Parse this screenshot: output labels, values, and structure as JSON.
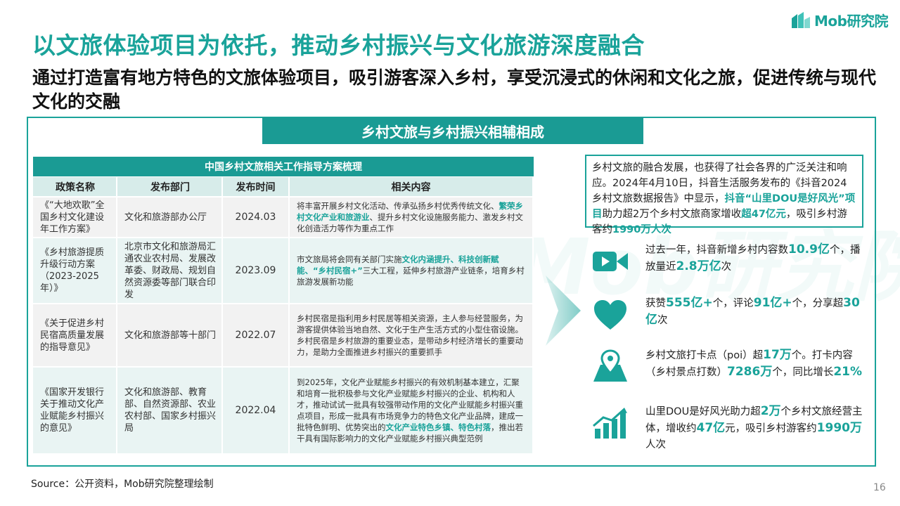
{
  "brand": {
    "logo_text": "Mob研究院",
    "accent": "#1aa39a"
  },
  "title": "以文旅体验项目为依托，推动乡村振兴与文化旅游深度融合",
  "subtitle": "通过打造富有地方特色的文旅体验项目，吸引游客深入乡村，享受沉浸式的休闲和文化之旅，促进传统与现代文化的交融",
  "banner": "乡村文旅与乡村振兴相辅相成",
  "watermark": "Mob研究院",
  "table": {
    "title": "中国乡村文旅相关工作指导方案梳理",
    "headers": [
      "政策名称",
      "发布部门",
      "发布时间",
      "相关内容"
    ],
    "rows": [
      {
        "name": "《“大地欢歌”全国乡村文化建设年工作方案》",
        "dept": "文化和旅游部办公厅",
        "date": "2024.03",
        "content_parts": [
          {
            "t": "将丰富开展乡村文化活动、传承弘扬乡村优秀传统文化、",
            "hl": false
          },
          {
            "t": "繁荣乡村文化产业和旅游业",
            "hl": true
          },
          {
            "t": "、提升乡村文化设施服务能力、激发乡村文化创造活力等作为重点工作",
            "hl": false
          }
        ]
      },
      {
        "name": "《乡村旅游提质升级行动方案（2023-2025年）》",
        "dept": "北京市文化和旅游局汇通农业农村局、发展改革委、财政局、规划自然资源委等部门联合印发",
        "date": "2023.09",
        "content_parts": [
          {
            "t": "市文旅局将会同有关部门实施",
            "hl": false
          },
          {
            "t": "文化内涵提升、科技创新赋能、“乡村民宿+”",
            "hl": true
          },
          {
            "t": "三大工程，延伸乡村旅游产业链条，培育乡村旅游发展新功能",
            "hl": false
          }
        ]
      },
      {
        "name": "《关于促进乡村民宿高质量发展的指导意见》",
        "dept": "文化和旅游部等十部门",
        "date": "2022.07",
        "content_parts": [
          {
            "t": "乡村民宿是指利用乡村民居等相关资源，主人参与经营服务，为游客提供体验当地自然、文化于生产生活方式的小型住宿设施。乡村民宿是乡村旅游的重要业态，是带动乡村经济增长的重要动力，是助力全面推进乡村振兴的重要抓手",
            "hl": false
          }
        ]
      },
      {
        "name": "《国家开发银行关于推动文化产业赋能乡村振兴的意见》",
        "dept": "文化和旅游部、教育部、自然资源部、农业农村部、国家乡村振兴局",
        "date": "2022.04",
        "content_parts": [
          {
            "t": "到2025年，文化产业赋能乡村振兴的有效机制基本建立，汇聚和培育一批积极参与文化产业赋能乡村振兴的企业、机构和人才，推动试试一批具有较强带动作用的文化产业赋能乡村振兴重点项目，形成一批具有市场竞争力的特色文化产业品牌，建成一批特色鲜明、优势突出的",
            "hl": false
          },
          {
            "t": "文化产业特色乡镇、特色村落",
            "hl": true
          },
          {
            "t": "，推出若干具有国际影响力的文化产业赋能乡村振兴典型范例",
            "hl": false
          }
        ]
      }
    ]
  },
  "callout_parts": [
    {
      "t": "乡村文旅的融合发展，也获得了社会各界的广泛关注和响应。2024年4月10日，抖音生活服务发布的《抖音2024乡村文旅数据报告》中显示，",
      "hl": false
    },
    {
      "t": "抖音“山里DOU是好风光”项目",
      "hl": true
    },
    {
      "t": "助力超2万个乡村文旅商家增收",
      "hl": false
    },
    {
      "t": "超47亿元",
      "hl": true
    },
    {
      "t": "，吸引乡村游客约",
      "hl": false
    },
    {
      "t": "1990万人次",
      "hl": true
    }
  ],
  "stats": [
    {
      "icon": "video-camera-icon",
      "parts": [
        {
          "t": "过去一年，抖音新增乡村内容数",
          "hl": false
        },
        {
          "t": "10.9亿",
          "hl": true
        },
        {
          "t": "个，播放量近",
          "hl": false
        },
        {
          "t": "2.8万亿",
          "hl": true
        },
        {
          "t": "次",
          "hl": false
        }
      ]
    },
    {
      "icon": "heart-icon",
      "parts": [
        {
          "t": "获赞",
          "hl": false
        },
        {
          "t": "555亿+",
          "hl": true
        },
        {
          "t": "个，评论",
          "hl": false
        },
        {
          "t": "91亿+",
          "hl": true
        },
        {
          "t": "个，分享超",
          "hl": false
        },
        {
          "t": "30亿",
          "hl": true
        },
        {
          "t": "次",
          "hl": false
        }
      ]
    },
    {
      "icon": "map-pin-icon",
      "parts": [
        {
          "t": "乡村文旅打卡点（poi）超",
          "hl": false
        },
        {
          "t": "17万",
          "hl": true
        },
        {
          "t": "个。打卡内容（乡村景点打数）",
          "hl": false
        },
        {
          "t": "7286万",
          "hl": true
        },
        {
          "t": "个，同比增长",
          "hl": false
        },
        {
          "t": "21%",
          "hl": true
        }
      ]
    },
    {
      "icon": "growth-chart-icon",
      "parts": [
        {
          "t": "山里DOU是好风光助力超",
          "hl": false
        },
        {
          "t": "2万",
          "hl": true
        },
        {
          "t": "个乡村文旅经营主体，增收约",
          "hl": false
        },
        {
          "t": "47亿",
          "hl": true
        },
        {
          "t": "元，吸引乡村游客约",
          "hl": false
        },
        {
          "t": "1990万",
          "hl": true
        },
        {
          "t": "人次",
          "hl": false
        }
      ]
    }
  ],
  "source": "Source：公开资料，Mob研究院整理绘制",
  "page_number": "16"
}
